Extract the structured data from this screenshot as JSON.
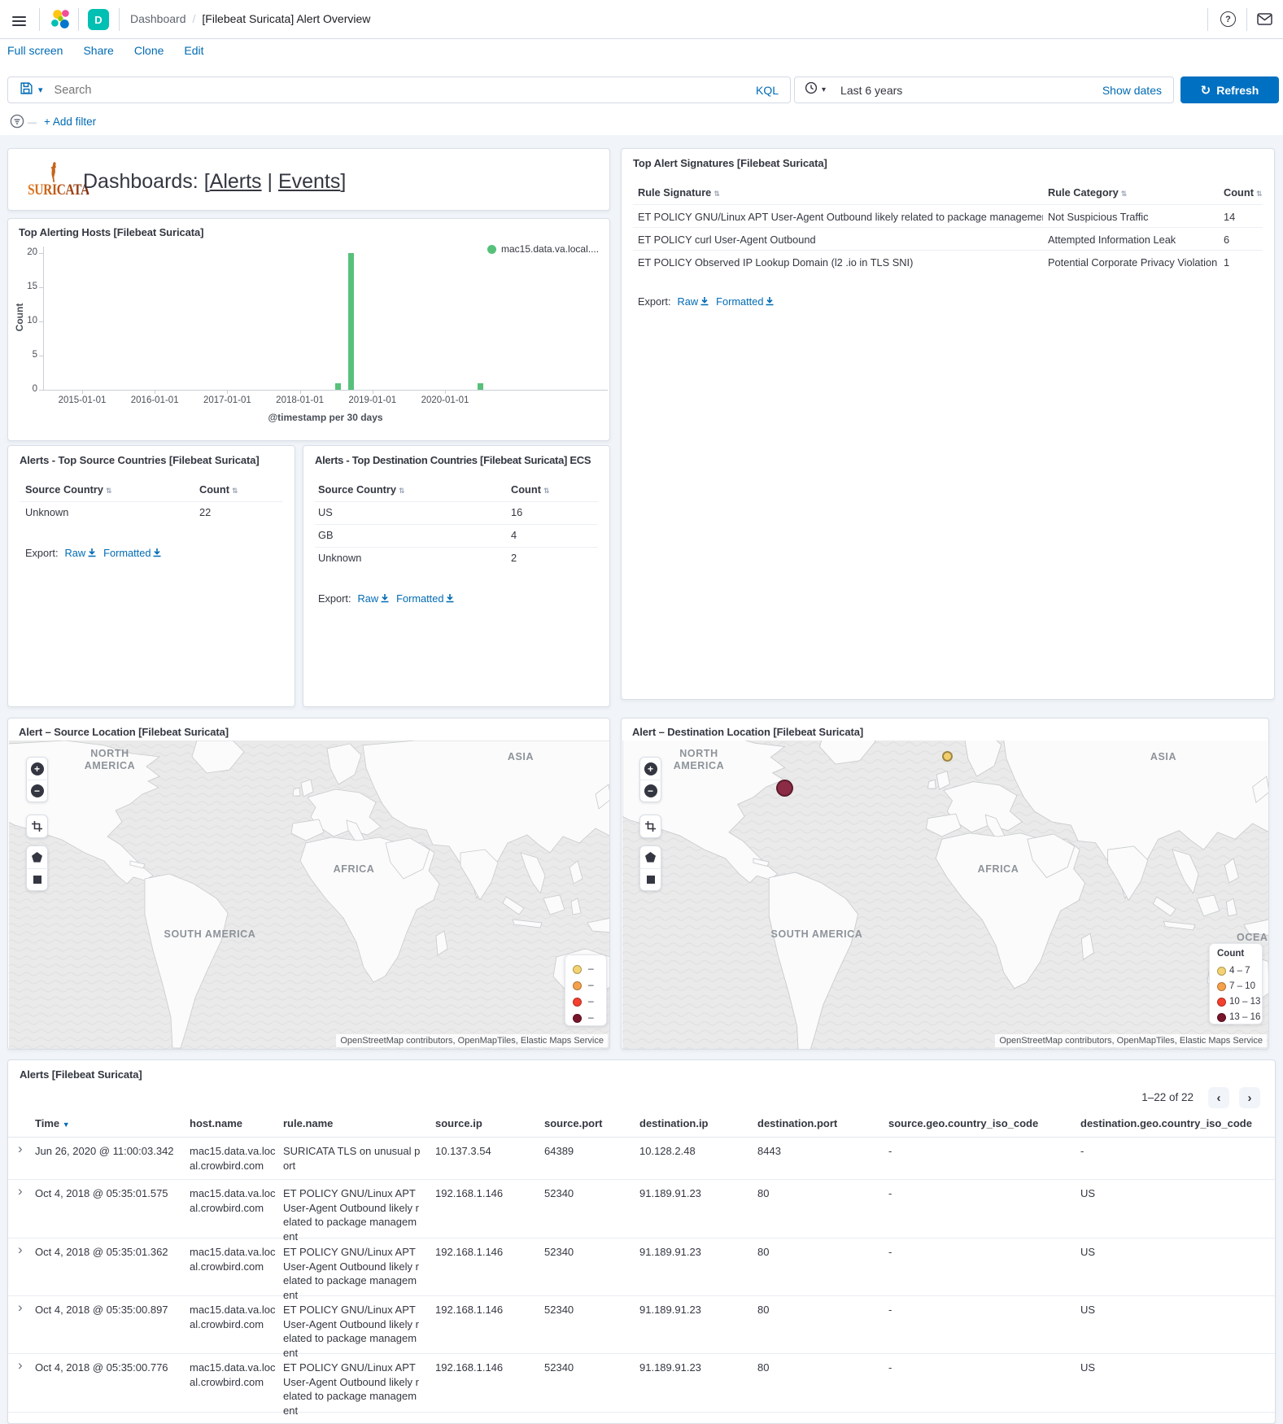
{
  "glyphs": {
    "sort": "⇅",
    "sort_desc": "▼",
    "expand": "›",
    "page_prev": "‹",
    "page_next": "›",
    "zoom_in": "+",
    "zoom_out": "−",
    "legend_dash": "–",
    "help": "?",
    "refresh_arrow": "↻",
    "chevron_down": "▾",
    "breadcrumb_sep": "/",
    "filter_dash": "—"
  },
  "colors": {
    "link_blue": "#006BB4",
    "primary_button": "#0071c2",
    "bar_green": "#57C17B",
    "space_badge_teal": "#00BFB3",
    "legend_yellow": "#F3D371",
    "legend_orange": "#F5A14B",
    "legend_red": "#F4402F",
    "legend_maroon": "#78152B",
    "map_dot_maroon": "#8C2B45",
    "map_dot_yellow": "#F2CE6B"
  },
  "chrome": {
    "breadcrumb": {
      "section": "Dashboard",
      "page": "[Filebeat Suricata] Alert Overview"
    },
    "space_badge": "D",
    "nav": {
      "full_screen": "Full screen",
      "share": "Share",
      "clone": "Clone",
      "edit": "Edit"
    },
    "query": {
      "placeholder": "Search",
      "language": "KQL"
    },
    "time_picker": {
      "value": "Last 6 years",
      "show_dates": "Show dates",
      "refresh": "Refresh"
    },
    "filter_bar": {
      "add_filter": "+ Add filter"
    }
  },
  "markdown_panel": {
    "logo_text": "SURICATA",
    "heading_prefix": "Dashboards: [",
    "alerts_link": "Alerts",
    "separator": "|",
    "events_link": "Events",
    "heading_suffix": "]"
  },
  "hosts_panel": {
    "title": "Top Alerting Hosts [Filebeat Suricata]"
  },
  "chart_data": {
    "type": "bar",
    "title": "Top Alerting Hosts [Filebeat Suricata]",
    "xlabel": "@timestamp per 30 days",
    "ylabel": "Count",
    "ylim": [
      0,
      20
    ],
    "y_ticks": [
      0,
      5,
      10,
      15,
      20
    ],
    "x_ticks": [
      "2015-01-01",
      "2016-01-01",
      "2017-01-01",
      "2018-01-01",
      "2019-01-01",
      "2020-01-01"
    ],
    "legend_position": "top-right",
    "series": [
      {
        "name": "mac15.data.va.local....",
        "color": "#57C17B",
        "points": [
          {
            "x": "2018-07-10",
            "y": 1
          },
          {
            "x": "2018-09-14",
            "y": 20
          },
          {
            "x": "2020-06-25",
            "y": 1
          }
        ]
      }
    ]
  },
  "signatures_panel": {
    "title": "Top Alert Signatures [Filebeat Suricata]",
    "headers": [
      "Rule Signature",
      "Rule Category",
      "Count"
    ],
    "rows": [
      [
        "ET POLICY GNU/Linux APT User-Agent Outbound likely related to package management",
        "Not Suspicious Traffic",
        "14"
      ],
      [
        "ET POLICY curl User-Agent Outbound",
        "Attempted Information Leak",
        "6"
      ],
      [
        "ET POLICY Observed IP Lookup Domain (l2 .io in TLS SNI)",
        "Potential Corporate Privacy Violation",
        "1"
      ]
    ],
    "export_label": "Export:",
    "raw_link": "Raw",
    "formatted_link": "Formatted"
  },
  "source_countries_panel": {
    "title": "Alerts - Top Source Countries [Filebeat Suricata]",
    "headers": [
      "Source Country",
      "Count"
    ],
    "rows": [
      [
        "Unknown",
        "22"
      ]
    ],
    "export_label": "Export:",
    "raw_link": "Raw",
    "formatted_link": "Formatted"
  },
  "dest_countries_panel": {
    "title": "Alerts - Top Destination Countries [Filebeat Suricata] ECS",
    "headers": [
      "Source Country",
      "Count"
    ],
    "rows": [
      [
        "US",
        "16"
      ],
      [
        "GB",
        "4"
      ],
      [
        "Unknown",
        "2"
      ]
    ],
    "export_label": "Export:",
    "raw_link": "Raw",
    "formatted_link": "Formatted"
  },
  "source_map": {
    "title": "Alert – Source Location [Filebeat Suricata]",
    "labels": {
      "north_america": "NORTH AMERICA",
      "asia": "ASIA",
      "africa": "AFRICA",
      "south_america": "SOUTH AMERICA"
    },
    "legend_items": [
      {
        "color": "#F3D371",
        "label": "–"
      },
      {
        "color": "#F5A14B",
        "label": "–"
      },
      {
        "color": "#F4402F",
        "label": "–"
      },
      {
        "color": "#78152B",
        "label": "–"
      }
    ],
    "attribution": "OpenStreetMap contributors, OpenMapTiles, Elastic Maps Service"
  },
  "dest_map": {
    "title": "Alert – Destination Location [Filebeat Suricata]",
    "labels": {
      "north_america": "NORTH AMERICA",
      "asia": "ASIA",
      "africa": "AFRICA",
      "south_america": "SOUTH AMERICA",
      "oceania": "OCEA"
    },
    "legend_title": "Count",
    "legend_items": [
      {
        "color": "#F3D371",
        "label": "4 – 7"
      },
      {
        "color": "#F5A14B",
        "label": "7 – 10"
      },
      {
        "color": "#F4402F",
        "label": "10 – 13"
      },
      {
        "color": "#78152B",
        "label": "13 – 16"
      }
    ],
    "points": [
      {
        "color": "#8C2B45",
        "count_range": "13 – 16"
      },
      {
        "color": "#F2CE6B",
        "count_range": "4 – 7"
      }
    ],
    "attribution": "OpenStreetMap contributors, OpenMapTiles, Elastic Maps Service"
  },
  "alerts_panel": {
    "title": "Alerts [Filebeat Suricata]",
    "pagination": "1–22 of 22",
    "headers": {
      "time": "Time",
      "host": "host.name",
      "rule": "rule.name",
      "source_ip": "source.ip",
      "source_port": "source.port",
      "destination_ip": "destination.ip",
      "destination_port": "destination.port",
      "source_geo": "source.geo.country_iso_code",
      "destination_geo": "destination.geo.country_iso_code"
    },
    "rows": [
      {
        "time": "Jun 26, 2020 @ 11:00:03.342",
        "host": "mac15.data.va.local.crowbird.com",
        "rule": "SURICATA TLS on unusual port",
        "source_ip": "10.137.3.54",
        "source_port": "64389",
        "destination_ip": "10.128.2.48",
        "destination_port": "8443",
        "source_geo": "-",
        "destination_geo": "-"
      },
      {
        "time": "Oct 4, 2018 @ 05:35:01.575",
        "host": "mac15.data.va.local.crowbird.com",
        "rule": "ET POLICY GNU/Linux APT User-Agent Outbound likely related to package management",
        "source_ip": "192.168.1.146",
        "source_port": "52340",
        "destination_ip": "91.189.91.23",
        "destination_port": "80",
        "source_geo": "-",
        "destination_geo": "US"
      },
      {
        "time": "Oct 4, 2018 @ 05:35:01.362",
        "host": "mac15.data.va.local.crowbird.com",
        "rule": "ET POLICY GNU/Linux APT User-Agent Outbound likely related to package management",
        "source_ip": "192.168.1.146",
        "source_port": "52340",
        "destination_ip": "91.189.91.23",
        "destination_port": "80",
        "source_geo": "-",
        "destination_geo": "US"
      },
      {
        "time": "Oct 4, 2018 @ 05:35:00.897",
        "host": "mac15.data.va.local.crowbird.com",
        "rule": "ET POLICY GNU/Linux APT User-Agent Outbound likely related to package management",
        "source_ip": "192.168.1.146",
        "source_port": "52340",
        "destination_ip": "91.189.91.23",
        "destination_port": "80",
        "source_geo": "-",
        "destination_geo": "US"
      },
      {
        "time": "Oct 4, 2018 @ 05:35:00.776",
        "host": "mac15.data.va.local.crowbird.com",
        "rule": "ET POLICY GNU/Linux APT User-Agent Outbound likely related to package management",
        "source_ip": "192.168.1.146",
        "source_port": "52340",
        "destination_ip": "91.189.91.23",
        "destination_port": "80",
        "source_geo": "-",
        "destination_geo": "US"
      }
    ]
  }
}
